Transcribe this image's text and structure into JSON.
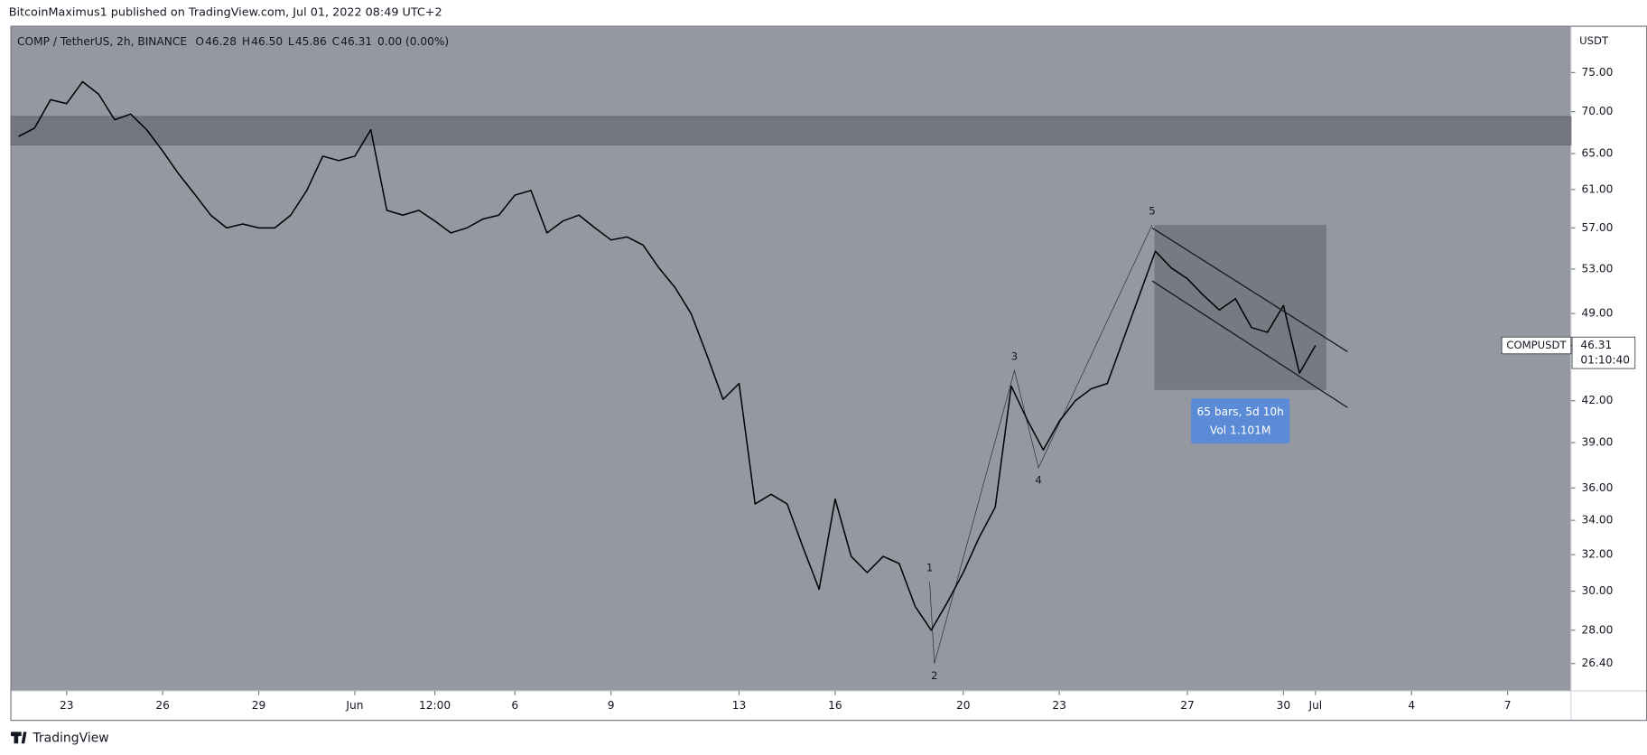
{
  "page": {
    "published": "BitcoinMaximus1 published on TradingView.com, Jul 01, 2022 08:49 UTC+2",
    "footer": "TradingView"
  },
  "chart_data": {
    "type": "line",
    "symbol": "COMP / TetherUS, 2h, BINANCE",
    "ohlc_header": [
      {
        "key": "O",
        "value": "46.28"
      },
      {
        "key": "H",
        "value": "46.50"
      },
      {
        "key": "L",
        "value": "45.86"
      },
      {
        "key": "C",
        "value": "46.31"
      }
    ],
    "change": "0.00 (0.00%)",
    "y_unit": "USDT",
    "log_scale": true,
    "x": [
      -1.5,
      -1,
      -0.5,
      0,
      0.5,
      1,
      1.5,
      2,
      2.5,
      3,
      3.5,
      4,
      4.5,
      5,
      5.5,
      6,
      6.5,
      7,
      7.5,
      8,
      8.5,
      9,
      9.5,
      10,
      10.5,
      11,
      11.5,
      12,
      12.5,
      13,
      13.5,
      14,
      14.5,
      15,
      15.5,
      16,
      16.5,
      17,
      17.5,
      18,
      18.5,
      19,
      19.5,
      20,
      20.5,
      21,
      21.5,
      22,
      22.5,
      23,
      23.5,
      24,
      24.5,
      25,
      25.5,
      26,
      26.5,
      27,
      27.5,
      28,
      28.5,
      29,
      29.5,
      30,
      30.5,
      31,
      31.5,
      32,
      32.5,
      33,
      33.5,
      34,
      34.5,
      35,
      35.5,
      36,
      36.5,
      37,
      37.5,
      38,
      38.5,
      39
    ],
    "series": [
      {
        "name": "COMPUSDT",
        "color": "#000000",
        "values": [
          67.0,
          68.0,
          71.5,
          71.0,
          73.8,
          72.2,
          69.0,
          69.7,
          67.8,
          65.3,
          62.7,
          60.5,
          58.3,
          57.0,
          57.4,
          57.0,
          57.0,
          58.3,
          60.9,
          64.7,
          64.2,
          64.7,
          67.8,
          58.8,
          58.3,
          58.8,
          57.7,
          56.5,
          57.0,
          57.9,
          58.3,
          60.4,
          60.9,
          56.5,
          57.7,
          58.3,
          57.0,
          55.8,
          56.1,
          55.3,
          53.1,
          51.3,
          49.0,
          45.5,
          42.1,
          43.3,
          35.0,
          35.6,
          35.0,
          32.4,
          30.1,
          35.3,
          31.9,
          31.0,
          31.9,
          31.5,
          29.2,
          28.0,
          29.4,
          31.0,
          33.0,
          34.8,
          43.1,
          40.6,
          38.5,
          40.5,
          42.0,
          42.9,
          43.3,
          46.8,
          50.6,
          54.7,
          53.1,
          52.1,
          50.6,
          49.3,
          50.3,
          47.8,
          47.4,
          49.7,
          44.1,
          46.31
        ]
      }
    ],
    "last_price": {
      "value": 46.31,
      "label": "46.31"
    },
    "countdown": "01:10:40",
    "xlim": [
      -1.74,
      46.98
    ],
    "xticks": [
      {
        "value": 0,
        "label": "23"
      },
      {
        "value": 3,
        "label": "26"
      },
      {
        "value": 6,
        "label": "29"
      },
      {
        "value": 9,
        "label": "Jun"
      },
      {
        "value": 11.5,
        "label": "12:00"
      },
      {
        "value": 14,
        "label": "6"
      },
      {
        "value": 17,
        "label": "9"
      },
      {
        "value": 21,
        "label": "13"
      },
      {
        "value": 24,
        "label": "16"
      },
      {
        "value": 28,
        "label": "20"
      },
      {
        "value": 31,
        "label": "23"
      },
      {
        "value": 35,
        "label": "27"
      },
      {
        "value": 38,
        "label": "30"
      },
      {
        "value": 39,
        "label": "Jul"
      },
      {
        "value": 42,
        "label": "4"
      },
      {
        "value": 45,
        "label": "7"
      }
    ],
    "ylim": [
      25.15,
      81.4
    ],
    "yticks": [
      {
        "value": 75,
        "label": "75.00"
      },
      {
        "value": 70,
        "label": "70.00"
      },
      {
        "value": 65,
        "label": "65.00"
      },
      {
        "value": 61,
        "label": "61.00"
      },
      {
        "value": 57,
        "label": "57.00"
      },
      {
        "value": 53,
        "label": "53.00"
      },
      {
        "value": 49,
        "label": "49.00"
      },
      {
        "value": 42,
        "label": "42.00"
      },
      {
        "value": 39,
        "label": "39.00"
      },
      {
        "value": 36,
        "label": "36.00"
      },
      {
        "value": 34,
        "label": "34.00"
      },
      {
        "value": 32,
        "label": "32.00"
      },
      {
        "value": 30,
        "label": "30.00"
      },
      {
        "value": 28,
        "label": "28.00"
      },
      {
        "value": 26.4,
        "label": "26.40"
      }
    ],
    "zone": {
      "ylim": [
        66.0,
        69.4
      ]
    },
    "range_box": {
      "xlim": [
        33.97,
        39.34
      ],
      "ylim": [
        42.8,
        57.3
      ],
      "labels": [
        "65 bars, 5d 10h",
        "Vol 1.101M"
      ]
    },
    "channel": [
      {
        "x": [
          33.9,
          40.0
        ],
        "y": [
          57.0,
          45.8
        ]
      },
      {
        "x": [
          33.9,
          40.0
        ],
        "y": [
          51.9,
          41.5
        ]
      }
    ],
    "waves": [
      {
        "label": "1",
        "x": 26.95,
        "y": 30.5
      },
      {
        "label": "2",
        "x": 27.1,
        "y": 26.4
      },
      {
        "label": "3",
        "x": 29.6,
        "y": 44.3
      },
      {
        "label": "4",
        "x": 30.35,
        "y": 37.3
      },
      {
        "label": "5",
        "x": 33.9,
        "y": 57.3
      }
    ]
  }
}
